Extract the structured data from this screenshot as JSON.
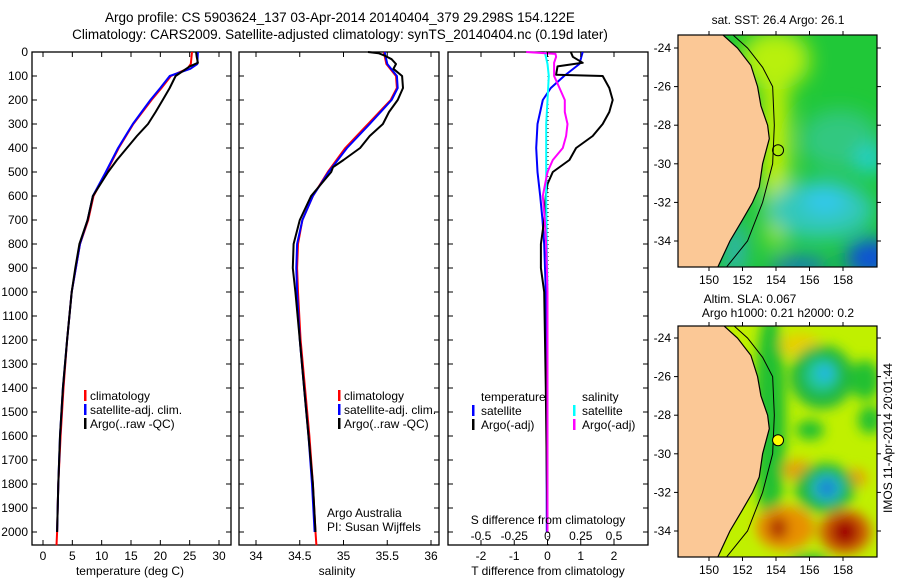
{
  "title": {
    "line1": "Argo profile: CS 5903624_137 03-Apr-2014 20140404_379 29.298S 154.122E",
    "line2": "Climatology: CARS2009. Satellite-adjusted climatology: synTS_20140404.nc (0.19d later)"
  },
  "credit": {
    "line1": "Argo Australia",
    "line2": "PI: Susan Wijffels"
  },
  "timestamp": "IMOS 11-Apr-2014 20:01:44",
  "colors": {
    "climatology": "#ff0000",
    "satellite": "#0000ff",
    "argo": "#000000",
    "salinity_satellite": "#00ffff",
    "salinity_argo": "#ff00ff"
  },
  "chart_data": [
    {
      "type": "line",
      "name": "temperature-profile",
      "xlabel": "temperature (deg C)",
      "ylabel": "depth",
      "xticks": [
        0,
        5,
        10,
        15,
        20,
        25,
        30
      ],
      "yticks": [
        0,
        100,
        200,
        300,
        400,
        500,
        600,
        700,
        800,
        900,
        1000,
        1100,
        1200,
        1300,
        1400,
        1500,
        1600,
        1700,
        1800,
        1900,
        2000
      ],
      "ylim": [
        0,
        2055
      ],
      "xlim": [
        -1.9,
        32
      ],
      "legend": {
        "placement": "middle-left",
        "entries": [
          "climatology",
          "satellite-adj. clim.",
          "Argo(..raw -QC)"
        ]
      },
      "series": [
        {
          "name": "climatology",
          "color": "#ff0000",
          "depth": [
            0,
            50,
            70,
            100,
            150,
            200,
            300,
            400,
            500,
            600,
            700,
            800,
            1000,
            1200,
            1400,
            1600,
            1800,
            2000,
            2055
          ],
          "values": [
            25.4,
            25.2,
            24.6,
            21.8,
            20.2,
            18.5,
            15.4,
            12.9,
            10.8,
            8.6,
            7.7,
            6.3,
            4.9,
            4.1,
            3.5,
            3.0,
            2.6,
            2.4,
            2.3
          ]
        },
        {
          "name": "satellite-adj. clim.",
          "color": "#0000ff",
          "depth": [
            0,
            50,
            70,
            100,
            150,
            200,
            300,
            400,
            500,
            600,
            700,
            800,
            1000,
            1200,
            1400,
            1600,
            1800,
            2000
          ],
          "values": [
            26.4,
            26.3,
            25.1,
            21.6,
            20.0,
            18.3,
            15.3,
            12.8,
            10.7,
            8.5,
            7.6,
            6.3,
            4.9,
            4.1,
            3.4,
            2.9,
            2.6,
            2.4
          ]
        },
        {
          "name": "Argo(..raw -QC)",
          "color": "#000000",
          "depth": [
            0,
            20,
            45,
            60,
            100,
            150,
            200,
            250,
            300,
            350,
            400,
            450,
            500,
            550,
            600,
            700,
            800,
            900,
            1000,
            1200,
            1400,
            1600,
            1800,
            2000
          ],
          "values": [
            26.1,
            26.2,
            26.4,
            25.0,
            22.6,
            21.6,
            20.4,
            19.2,
            17.9,
            16.0,
            14.3,
            12.6,
            11.1,
            9.8,
            8.5,
            7.6,
            6.2,
            5.5,
            4.9,
            4.1,
            3.4,
            2.9,
            2.6,
            2.4
          ]
        }
      ]
    },
    {
      "type": "line",
      "name": "salinity-profile",
      "xlabel": "salinity",
      "xticks": [
        34,
        34.5,
        35,
        35.5,
        36
      ],
      "xlim": [
        33.8,
        36.1
      ],
      "ylim": [
        0,
        2055
      ],
      "legend": {
        "placement": "middle-left",
        "entries": [
          "climatology",
          "satellite-adj. clim.",
          "Argo(..raw -QC)"
        ]
      },
      "series": [
        {
          "name": "climatology",
          "color": "#ff0000",
          "depth": [
            0,
            50,
            100,
            150,
            200,
            300,
            400,
            500,
            600,
            700,
            800,
            900,
            1000,
            1200,
            1400,
            1600,
            1800,
            2000,
            2055
          ],
          "values": [
            35.46,
            35.49,
            35.6,
            35.61,
            35.54,
            35.28,
            35.02,
            34.82,
            34.65,
            34.53,
            34.48,
            34.47,
            34.48,
            34.51,
            34.56,
            34.61,
            34.65,
            34.68,
            34.69
          ]
        },
        {
          "name": "satellite-adj. clim.",
          "color": "#0000ff",
          "depth": [
            0,
            50,
            100,
            150,
            200,
            300,
            400,
            500,
            600,
            700,
            800,
            900,
            1000,
            1200,
            1400,
            1600,
            1800,
            2000
          ],
          "values": [
            35.47,
            35.5,
            35.61,
            35.62,
            35.55,
            35.3,
            35.04,
            34.83,
            34.65,
            34.53,
            34.47,
            34.46,
            34.47,
            34.5,
            34.55,
            34.6,
            34.64,
            34.67
          ]
        },
        {
          "name": "Argo(..raw -QC)",
          "color": "#000000",
          "depth": [
            0,
            5,
            15,
            30,
            50,
            70,
            100,
            150,
            200,
            250,
            300,
            350,
            400,
            450,
            480,
            500,
            600,
            700,
            800,
            900,
            1000,
            1200,
            1400,
            1600,
            1800,
            2000
          ],
          "values": [
            35.28,
            35.4,
            35.47,
            35.55,
            35.6,
            35.57,
            35.67,
            35.68,
            35.62,
            35.52,
            35.45,
            35.3,
            35.19,
            35.0,
            34.88,
            34.86,
            34.63,
            34.5,
            34.43,
            34.42,
            34.45,
            34.5,
            34.55,
            34.6,
            34.65,
            34.68
          ]
        }
      ]
    },
    {
      "type": "line",
      "name": "difference-profile",
      "xlabel": "T difference from climatology",
      "xlabel2": "S difference from climatology",
      "xticks": [
        -2,
        -1,
        0,
        1,
        2
      ],
      "xticks2": [
        -0.5,
        -0.25,
        0,
        0.25,
        0.5
      ],
      "xlim": [
        -3,
        3
      ],
      "ylim": [
        0,
        2055
      ],
      "legend": {
        "placement": "middle",
        "temperature_title": "temperature",
        "salinity_title": "salinity",
        "entries": [
          "satellite",
          "Argo(-adj)",
          "satellite",
          "Argo(-adj)"
        ]
      },
      "series": [
        {
          "name": "T satellite",
          "axis": "T",
          "color": "#0000ff",
          "depth": [
            0,
            50,
            100,
            150,
            200,
            300,
            400,
            500,
            600,
            700,
            800,
            1000,
            1400,
            2000
          ],
          "values": [
            1.06,
            0.96,
            0.5,
            0.1,
            -0.14,
            -0.3,
            -0.34,
            -0.3,
            -0.22,
            -0.15,
            -0.1,
            -0.05,
            -0.03,
            -0.02
          ]
        },
        {
          "name": "T Argo(-adj)",
          "axis": "T",
          "color": "#000000",
          "depth": [
            0,
            20,
            45,
            60,
            95,
            100,
            150,
            200,
            250,
            300,
            350,
            400,
            450,
            500,
            550,
            600,
            700,
            800,
            900,
            1000,
            1400,
            2000
          ],
          "values": [
            0.7,
            0.76,
            1.06,
            0.3,
            0.26,
            1.66,
            1.86,
            1.96,
            1.86,
            1.66,
            1.36,
            0.86,
            0.66,
            0.16,
            0.0,
            -0.05,
            -0.1,
            -0.2,
            -0.2,
            -0.1,
            -0.05,
            0.0
          ]
        },
        {
          "name": "S satellite",
          "axis": "S",
          "color": "#00ffff",
          "depth": [
            0,
            50,
            100,
            200,
            300,
            400,
            600,
            800,
            1000,
            2000
          ],
          "values": [
            -0.02,
            0.0,
            0.01,
            0.0,
            -0.01,
            -0.01,
            -0.01,
            -0.005,
            0.0,
            0.0
          ]
        },
        {
          "name": "S Argo(-adj)",
          "axis": "S",
          "color": "#ff00ff",
          "depth": [
            0,
            8,
            20,
            45,
            100,
            150,
            200,
            250,
            300,
            350,
            400,
            450,
            500,
            600,
            700,
            800,
            1000,
            2000
          ],
          "values": [
            -0.16,
            0.06,
            0.065,
            0.05,
            0.05,
            0.09,
            0.13,
            0.13,
            0.15,
            0.14,
            0.115,
            0.04,
            0.0,
            -0.035,
            -0.02,
            -0.01,
            0.0,
            0.0
          ]
        }
      ]
    }
  ],
  "maps": {
    "sst": {
      "title": "sat. SST: 26.4 Argo: 26.1"
    },
    "sla": {
      "title1": "Altim. SLA: 0.067",
      "title2": "Argo h1000: 0.21 h2000: 0.2"
    },
    "lon_ticks": [
      "150",
      "152",
      "154",
      "156",
      "158"
    ],
    "lat_ticks": [
      "-24",
      "-26",
      "-28",
      "-30",
      "-32",
      "-34"
    ],
    "float_position": {
      "lon": 154.122,
      "lat": -29.298
    },
    "coastline": [
      [
        150.8,
        -23.3
      ],
      [
        151.7,
        -24
      ],
      [
        152.5,
        -24.9
      ],
      [
        152.9,
        -26
      ],
      [
        153.1,
        -27
      ],
      [
        153.5,
        -28
      ],
      [
        153.6,
        -28.7
      ],
      [
        153.2,
        -30
      ],
      [
        153.0,
        -31.2
      ],
      [
        152.6,
        -32
      ],
      [
        152.0,
        -32.9
      ],
      [
        151.25,
        -34
      ],
      [
        150.5,
        -35.4
      ]
    ],
    "isobath_200m": [
      [
        151.4,
        -23.3
      ],
      [
        152.3,
        -24
      ],
      [
        153.2,
        -25
      ],
      [
        153.8,
        -26
      ],
      [
        153.9,
        -28
      ],
      [
        153.8,
        -30
      ],
      [
        153.2,
        -32
      ],
      [
        152.3,
        -34
      ],
      [
        151.0,
        -35.4
      ]
    ]
  }
}
